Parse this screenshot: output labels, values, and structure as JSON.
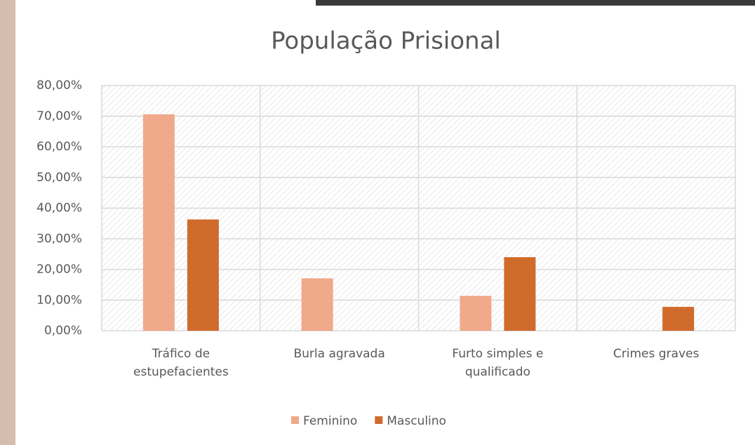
{
  "chart_data": {
    "type": "bar",
    "title": "População Prisional",
    "categories": [
      "Tráfico de estupefacientes",
      "Burla agravada",
      "Furto simples e qualificado",
      "Crimes graves"
    ],
    "series": [
      {
        "name": "Feminino",
        "color": "#f0a98a",
        "values": [
          70.6,
          17.1,
          11.4,
          0
        ]
      },
      {
        "name": "Masculino",
        "color": "#d06b2c",
        "values": [
          36.3,
          0,
          24.0,
          7.8
        ]
      }
    ],
    "ylim": [
      0,
      80
    ],
    "yticks": [
      {
        "value": 0,
        "label": "0,00%"
      },
      {
        "value": 10,
        "label": "10,00%"
      },
      {
        "value": 20,
        "label": "20,00%"
      },
      {
        "value": 30,
        "label": "30,00%"
      },
      {
        "value": 40,
        "label": "40,00%"
      },
      {
        "value": 50,
        "label": "50,00%"
      },
      {
        "value": 60,
        "label": "60,00%"
      },
      {
        "value": 70,
        "label": "70,00%"
      },
      {
        "value": 80,
        "label": "80,00%"
      }
    ],
    "grid": true,
    "legend": "bottom"
  }
}
